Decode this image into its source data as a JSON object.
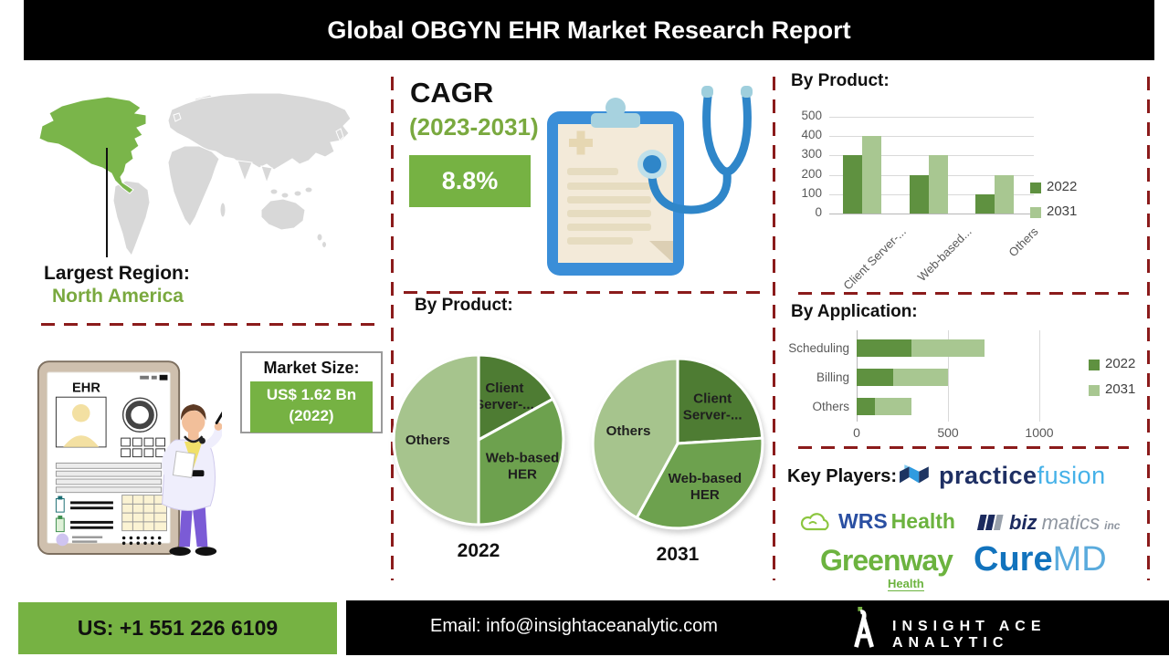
{
  "header": {
    "title": "Global OBGYN EHR Market Research Report"
  },
  "region": {
    "label": "Largest Region:",
    "value": "North America"
  },
  "market_size": {
    "label": "Market Size:",
    "value": "US$ 1.62 Bn",
    "year": "(2022)"
  },
  "tablet": {
    "screen_title": "EHR"
  },
  "cagr": {
    "label": "CAGR",
    "period": "(2023-2031)",
    "value": "8.8%"
  },
  "chart_data": [
    {
      "id": "by_product_bars",
      "type": "bar",
      "title": "By Product:",
      "categories": [
        "Client Server-...",
        "Web-based...",
        "Others"
      ],
      "series": [
        {
          "name": "2022",
          "color": "#5f9140",
          "values": [
            300,
            200,
            100
          ]
        },
        {
          "name": "2031",
          "color": "#a8c791",
          "values": [
            400,
            300,
            200
          ]
        }
      ],
      "ylim": [
        0,
        500
      ],
      "yticks": [
        0,
        100,
        200,
        300,
        400,
        500
      ],
      "legend_position": "right",
      "grid": true
    },
    {
      "id": "by_product_pie_2022",
      "type": "pie",
      "title": "By Product:",
      "year_label": "2022",
      "labels": [
        [
          "Client",
          "Server-..."
        ],
        [
          "Web-based",
          "HER"
        ],
        [
          "Others"
        ]
      ],
      "values": [
        17,
        33,
        50
      ],
      "colors": [
        "#4e7c33",
        "#6da14e",
        "#a6c48d"
      ]
    },
    {
      "id": "by_product_pie_2031",
      "type": "pie",
      "year_label": "2031",
      "labels": [
        [
          "Client",
          "Server-..."
        ],
        [
          "Web-based",
          "HER"
        ],
        [
          "Others"
        ]
      ],
      "values": [
        24,
        34,
        42
      ],
      "colors": [
        "#4e7c33",
        "#6da14e",
        "#a6c48d"
      ]
    },
    {
      "id": "by_application",
      "type": "stacked_bar_horizontal",
      "title": "By Application:",
      "categories": [
        "Scheduling",
        "Billing",
        "Others"
      ],
      "series": [
        {
          "name": "2022",
          "color": "#5f9140",
          "values": [
            300,
            200,
            100
          ]
        },
        {
          "name": "2031",
          "color": "#a8c791",
          "values": [
            400,
            300,
            200
          ]
        }
      ],
      "xlim": [
        0,
        1000
      ],
      "xticks": [
        0,
        500,
        1000
      ],
      "legend_position": "right",
      "grid": true
    }
  ],
  "key_players": {
    "label": "Key Players:",
    "practice_fusion": {
      "part1": "practice",
      "part2": "fusion"
    },
    "wrs_health": {
      "part1": "WRS",
      "part2": "Health"
    },
    "bizmatics": {
      "part1": "biz",
      "part2": "matics",
      "part3": "inc"
    },
    "greenway": {
      "part1": "Greenway",
      "part2": "Health"
    },
    "curemd": {
      "part1": "Cure",
      "part2": "MD"
    }
  },
  "footer": {
    "phone": "US: +1 551 226 6109",
    "email_label": "Email:",
    "email": "info@insightaceanalytic.com",
    "brand": "INSIGHT ACE ANALYTIC"
  },
  "colors": {
    "accent_green": "#76b243",
    "text_green": "#7aa93f",
    "series_2022": "#5f9140",
    "series_2031": "#a8c791",
    "pie_dark": "#4e7c33",
    "pie_mid": "#6da14e",
    "pie_light": "#a6c48d",
    "divider_red": "#8b1b1b",
    "map_highlight": "#7ab54a",
    "map_land": "#d8d8d8"
  }
}
